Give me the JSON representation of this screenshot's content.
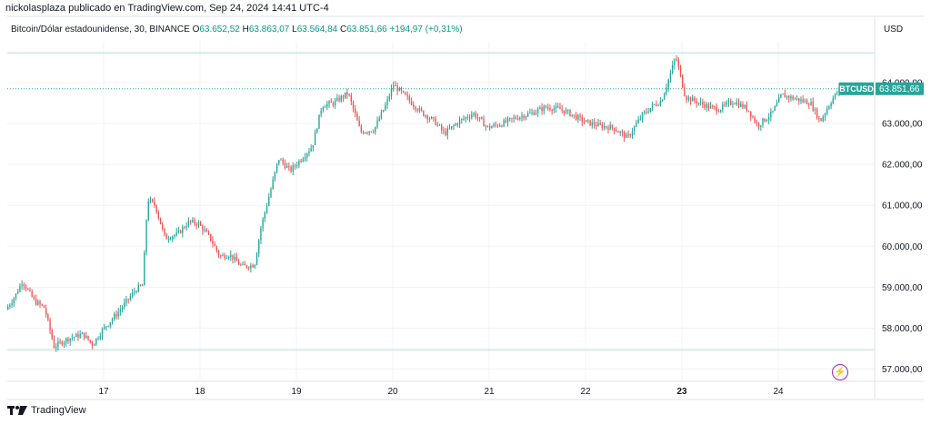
{
  "header": {
    "text": "nickolasplaza publicado en TradingView.com, Sep 24, 2024 14:41 UTC-4"
  },
  "legend": {
    "symbol": "Bitcoin/Dólar estadounidense, 30, BINANCE",
    "o_label": "O",
    "o_value": "63.652,52",
    "h_label": "H",
    "h_value": "63.863,07",
    "l_label": "L",
    "l_value": "63.564,84",
    "c_label": "C",
    "c_value": "63.851,66",
    "change": "+194,97 (+0,31%)"
  },
  "currency_button": "USD",
  "price_badge": {
    "symbol": "BTCUSD",
    "value": "63.851,66"
  },
  "footer": {
    "brand": "TradingView"
  },
  "icons": {
    "flash": "flash-icon",
    "logo": "tradingview-logo-icon"
  },
  "colors": {
    "up": "#26a69a",
    "down": "#ef5350",
    "badge": "#26a69a",
    "grid": "#f0f3fa",
    "hline": "#b2dfdb",
    "flash": "#9c27b0"
  },
  "chart_data": {
    "type": "candlestick",
    "interval_minutes": 30,
    "y_ticks": [
      57000,
      58000,
      59000,
      60000,
      61000,
      62000,
      63000,
      64000
    ],
    "y_tick_labels": [
      "57.000,00",
      "58.000,00",
      "59.000,00",
      "60.000,00",
      "61.000,00",
      "62.000,00",
      "63.000,00",
      "64.000,00"
    ],
    "ylim": [
      56700,
      65000
    ],
    "x_tick_labels": [
      "17",
      "18",
      "19",
      "20",
      "21",
      "22",
      "23",
      "24"
    ],
    "x_tick_bold": [
      false,
      false,
      false,
      false,
      false,
      false,
      true,
      false
    ],
    "x_range_days": [
      16.0,
      25.0
    ],
    "last_price": 63851.66,
    "horizontal_levels": [
      64730,
      57470
    ],
    "anchors": [
      [
        16.0,
        58450
      ],
      [
        16.1,
        58800
      ],
      [
        16.17,
        59150
      ],
      [
        16.3,
        58650
      ],
      [
        16.4,
        58500
      ],
      [
        16.5,
        57550
      ],
      [
        16.65,
        57750
      ],
      [
        16.8,
        57850
      ],
      [
        16.9,
        57600
      ],
      [
        17.0,
        57950
      ],
      [
        17.15,
        58350
      ],
      [
        17.25,
        58650
      ],
      [
        17.35,
        58950
      ],
      [
        17.42,
        59050
      ],
      [
        17.47,
        61150
      ],
      [
        17.55,
        61000
      ],
      [
        17.65,
        60200
      ],
      [
        17.78,
        60300
      ],
      [
        17.9,
        60600
      ],
      [
        18.0,
        60550
      ],
      [
        18.12,
        60200
      ],
      [
        18.22,
        59750
      ],
      [
        18.32,
        59800
      ],
      [
        18.45,
        59500
      ],
      [
        18.58,
        59550
      ],
      [
        18.65,
        60500
      ],
      [
        18.75,
        61400
      ],
      [
        18.83,
        62150
      ],
      [
        18.95,
        61850
      ],
      [
        19.05,
        62100
      ],
      [
        19.18,
        62450
      ],
      [
        19.28,
        63450
      ],
      [
        19.4,
        63500
      ],
      [
        19.55,
        63750
      ],
      [
        19.68,
        62800
      ],
      [
        19.82,
        62850
      ],
      [
        19.95,
        63500
      ],
      [
        20.02,
        63950
      ],
      [
        20.15,
        63650
      ],
      [
        20.3,
        63300
      ],
      [
        20.45,
        63050
      ],
      [
        20.55,
        62750
      ],
      [
        20.7,
        63050
      ],
      [
        20.85,
        63250
      ],
      [
        21.0,
        62900
      ],
      [
        21.15,
        63000
      ],
      [
        21.3,
        63150
      ],
      [
        21.45,
        63250
      ],
      [
        21.6,
        63400
      ],
      [
        21.75,
        63350
      ],
      [
        21.85,
        63250
      ],
      [
        22.0,
        63050
      ],
      [
        22.15,
        62950
      ],
      [
        22.3,
        62900
      ],
      [
        22.45,
        62650
      ],
      [
        22.6,
        63200
      ],
      [
        22.72,
        63450
      ],
      [
        22.8,
        63550
      ],
      [
        22.9,
        64250
      ],
      [
        22.95,
        64650
      ],
      [
        23.05,
        63650
      ],
      [
        23.2,
        63500
      ],
      [
        23.3,
        63400
      ],
      [
        23.4,
        63350
      ],
      [
        23.55,
        63550
      ],
      [
        23.7,
        63350
      ],
      [
        23.8,
        62950
      ],
      [
        23.95,
        63250
      ],
      [
        24.05,
        63700
      ],
      [
        24.2,
        63600
      ],
      [
        24.35,
        63500
      ],
      [
        24.45,
        63050
      ],
      [
        24.55,
        63500
      ],
      [
        24.65,
        63851.66
      ]
    ]
  }
}
